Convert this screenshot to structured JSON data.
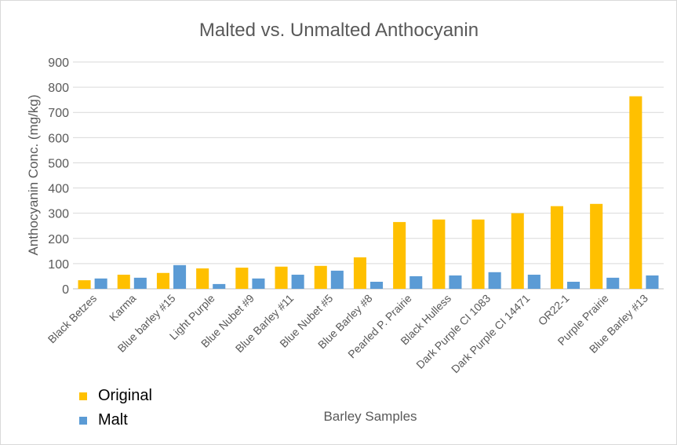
{
  "chart_data": {
    "type": "bar",
    "title": "Malted vs. Unmalted Anthocyanin",
    "xlabel": "Barley Samples",
    "ylabel": "Anthocyanin Conc. (mg/kg)",
    "ylim": [
      0,
      900
    ],
    "yticks": [
      0,
      100,
      200,
      300,
      400,
      500,
      600,
      700,
      800,
      900
    ],
    "grid": true,
    "legend": "bottom-left",
    "categories": [
      "Black Betzes",
      "Karma",
      "Blue barley #15",
      "Light Purple",
      "Blue Nubet #9",
      "Blue Barley #11",
      "Blue Nubet #5",
      "Blue Barley #8",
      "Pearled P. Prairie",
      "Black Hulless",
      "Dark Purple CI 1083",
      "Dark Purple CI 14471",
      "OR22-1",
      "Purple Prairie",
      "Blue Barley #13"
    ],
    "series": [
      {
        "name": "Original",
        "color": "#FFC000",
        "values": [
          34,
          56,
          63,
          81,
          84,
          88,
          91,
          125,
          265,
          275,
          275,
          300,
          328,
          337,
          764
        ]
      },
      {
        "name": "Malt",
        "color": "#5B9BD5",
        "values": [
          41,
          44,
          94,
          19,
          41,
          56,
          72,
          28,
          50,
          53,
          66,
          56,
          28,
          44,
          53
        ]
      }
    ]
  }
}
